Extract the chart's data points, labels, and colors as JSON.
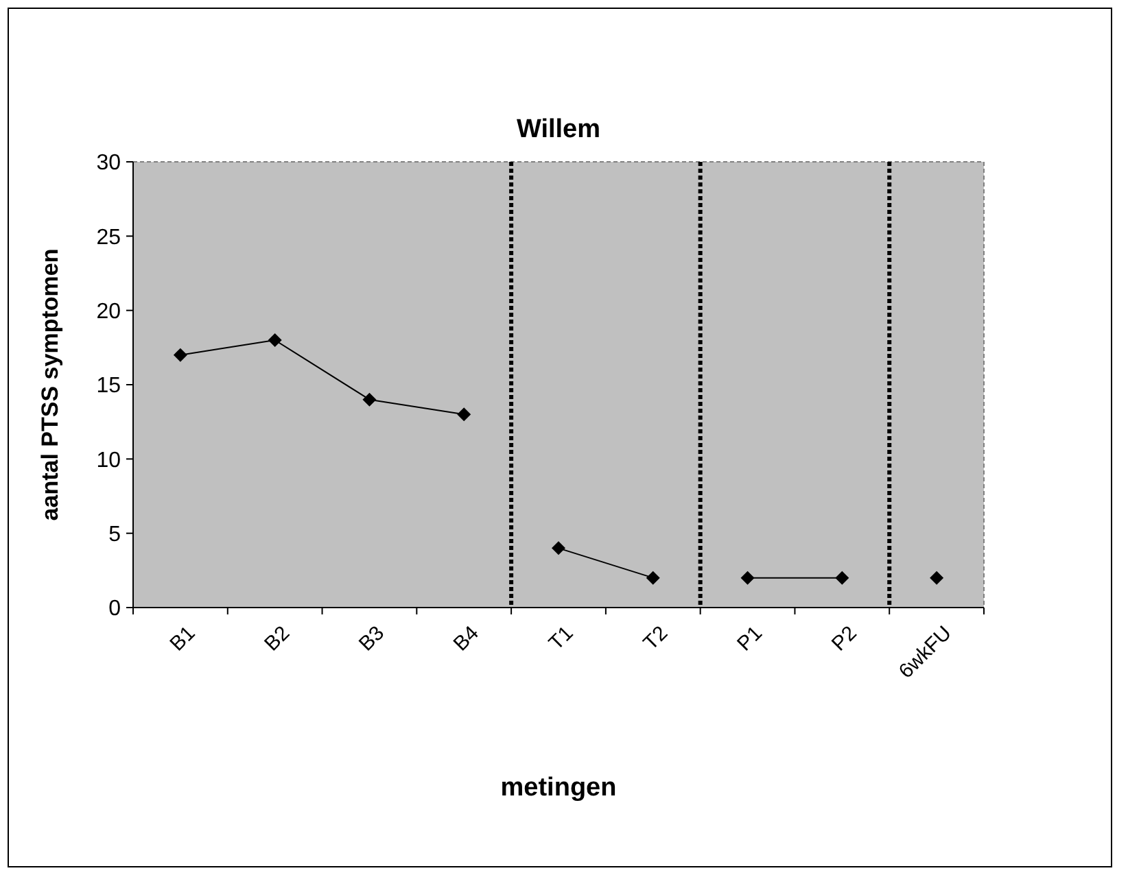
{
  "chart_data": {
    "type": "line",
    "title": "Willem",
    "xlabel": "metingen",
    "ylabel": "aantal PTSS symptomen",
    "categories": [
      "B1",
      "B2",
      "B3",
      "B4",
      "T1",
      "T2",
      "P1",
      "P2",
      "6wkFU"
    ],
    "series": [
      {
        "color": "#000000",
        "values": [
          17,
          18,
          14,
          13,
          null,
          null,
          null,
          null,
          null
        ]
      },
      {
        "color": "#000000",
        "values": [
          null,
          null,
          null,
          null,
          4,
          2,
          null,
          null,
          null
        ]
      },
      {
        "color": "#000000",
        "values": [
          null,
          null,
          null,
          null,
          null,
          null,
          2,
          2,
          null
        ]
      },
      {
        "color": "#000000",
        "values": [
          null,
          null,
          null,
          null,
          null,
          null,
          null,
          null,
          2
        ]
      }
    ],
    "ylim": [
      0,
      30
    ],
    "yticks": [
      0,
      5,
      10,
      15,
      20,
      25,
      30
    ],
    "grid": false,
    "marker": "diamond",
    "line_style": "solid",
    "ref_lines": [
      {
        "axis": "x",
        "value": "T1",
        "color": "#000000",
        "line_style": "dotted"
      },
      {
        "axis": "x",
        "value": "P1",
        "color": "#000000",
        "line_style": "dotted"
      },
      {
        "axis": "x",
        "value": "6wkFU",
        "color": "#000000",
        "line_style": "dotted"
      }
    ]
  }
}
